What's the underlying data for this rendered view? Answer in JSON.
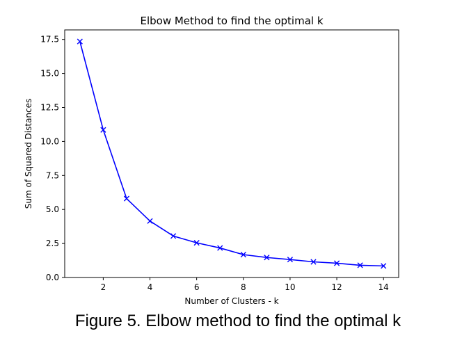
{
  "caption": "Figure 5. Elbow method to find the optimal k",
  "chart_data": {
    "type": "line",
    "title": "Elbow Method to find the optimal k",
    "xlabel": "Number of Clusters - k",
    "ylabel": "Sum of Squared Distances",
    "x": [
      1,
      2,
      3,
      4,
      5,
      6,
      7,
      8,
      9,
      10,
      11,
      12,
      13,
      14
    ],
    "series": [
      {
        "values": [
          17.35,
          10.85,
          5.8,
          4.15,
          3.05,
          2.55,
          2.17,
          1.68,
          1.47,
          1.32,
          1.15,
          1.05,
          0.9,
          0.85
        ],
        "color": "#0000ff",
        "marker": "x"
      }
    ],
    "xlim": [
      0.35,
      14.65
    ],
    "ylim": [
      0,
      18.2
    ],
    "xticks": [
      2,
      4,
      6,
      8,
      10,
      12,
      14
    ],
    "yticks": [
      0.0,
      2.5,
      5.0,
      7.5,
      10.0,
      12.5,
      15.0,
      17.5
    ],
    "xtick_labels": [
      "2",
      "4",
      "6",
      "8",
      "10",
      "12",
      "14"
    ],
    "ytick_labels": [
      "0.0",
      "2.5",
      "5.0",
      "7.5",
      "10.0",
      "12.5",
      "15.0",
      "17.5"
    ],
    "grid": false,
    "legend": false
  }
}
